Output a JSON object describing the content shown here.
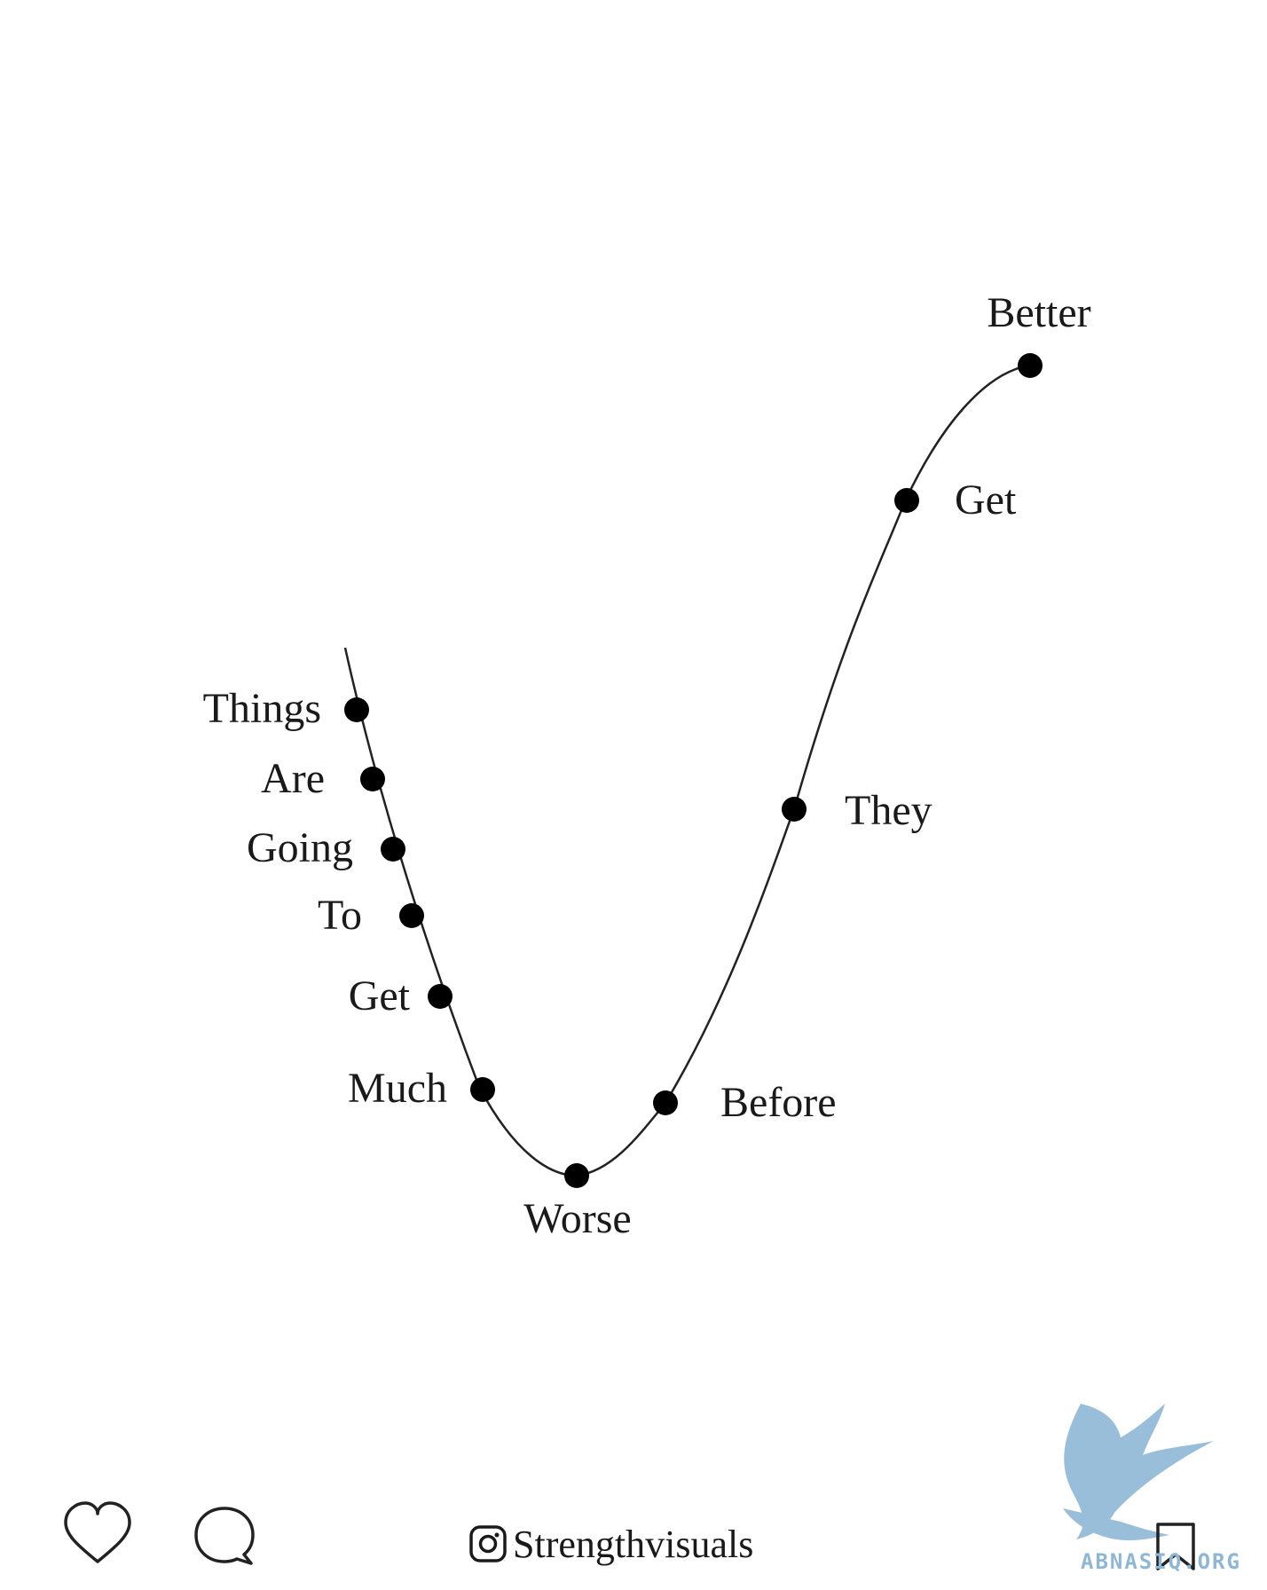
{
  "diagram": {
    "words": [
      {
        "text": "Things",
        "anchor": "end"
      },
      {
        "text": "Are",
        "anchor": "end"
      },
      {
        "text": "Going",
        "anchor": "end"
      },
      {
        "text": "To",
        "anchor": "end"
      },
      {
        "text": "Get",
        "anchor": "end"
      },
      {
        "text": "Much",
        "anchor": "end"
      },
      {
        "text": "Worse",
        "anchor": "middle"
      },
      {
        "text": "Before",
        "anchor": "start"
      },
      {
        "text": "They",
        "anchor": "start"
      },
      {
        "text": "Get",
        "anchor": "start"
      },
      {
        "text": "Better",
        "anchor": "middle"
      }
    ],
    "line_color": "#222222",
    "dot_color": "#000000"
  },
  "toolbar": {
    "like_icon": "heart-icon",
    "comment_icon": "comment-icon",
    "account_icon": "instagram-icon",
    "account_handle": "Strengthvisuals",
    "save_icon": "bookmark-icon"
  },
  "watermark": {
    "text": "ABNASIQ.ORG",
    "color": "#8eb7d6"
  }
}
